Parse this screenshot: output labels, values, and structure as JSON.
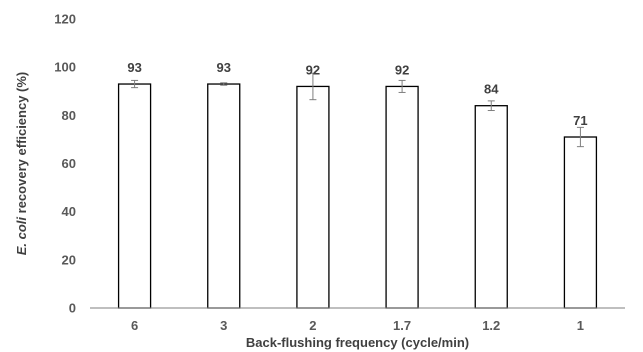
{
  "chart_data": {
    "type": "bar",
    "categories": [
      "6",
      "3",
      "2",
      "1.7",
      "1.2",
      "1"
    ],
    "values": [
      93,
      93,
      92,
      92,
      84,
      71
    ],
    "errors": [
      1.5,
      0.5,
      5.5,
      2.5,
      2.0,
      4.0
    ],
    "data_labels": [
      "93",
      "93",
      "92",
      "92",
      "84",
      "71"
    ],
    "title": "",
    "xlabel": "Back-flushing frequency (cycle/min)",
    "ylabel_italic": "E. coli",
    "ylabel_rest": " recovery efficiency (%)",
    "ylim": [
      0,
      120
    ],
    "yticks": [
      "0",
      "20",
      "40",
      "60",
      "80",
      "100",
      "120"
    ],
    "grid": false,
    "legend": "none",
    "bar_fill": "#ffffff",
    "bar_stroke": "#000000",
    "axis_color": "#7f7f7f"
  }
}
